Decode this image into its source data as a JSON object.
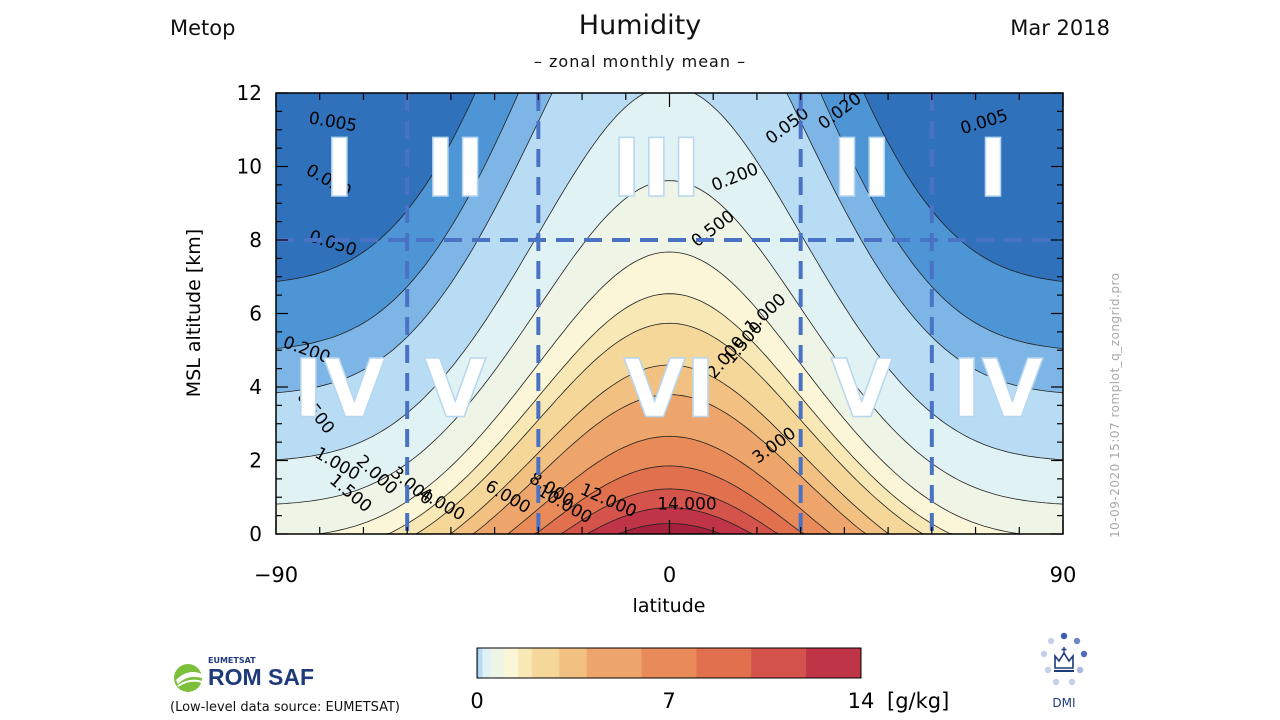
{
  "header": {
    "instrument": "Metop",
    "date": "Mar 2018",
    "title": "Humidity",
    "subtitle": "– zonal monthly mean –",
    "side_stamp": "10-09-2020 15:07 romplot_q_zongrid.pro"
  },
  "chart_data": {
    "type": "contour",
    "variable": "specific humidity",
    "xlabel": "latitude",
    "ylabel": "MSL altitude [km]",
    "xlim": [
      -90,
      90
    ],
    "ylim": [
      0,
      12
    ],
    "x_ticks": [
      "−90",
      "0",
      "90"
    ],
    "y_ticks": [
      "0",
      "2",
      "4",
      "6",
      "8",
      "10",
      "12"
    ],
    "contour_levels": [
      0.005,
      0.02,
      0.05,
      0.2,
      0.5,
      1.0,
      1.5,
      2.0,
      3.0,
      4.0,
      6.0,
      8.0,
      10.0,
      12.0,
      14.0
    ],
    "band_colors": [
      "#2f72bb",
      "#4d95d5",
      "#7db6e6",
      "#b8dcf4",
      "#e1f2f5",
      "#eef5e6",
      "#fbf6d7",
      "#f8e8b6",
      "#f5d799",
      "#f2c080",
      "#eea56b",
      "#e98a59",
      "#e1704f",
      "#d4534a",
      "#c03447",
      "#a8213c"
    ],
    "contour_labels": [
      {
        "text": "0.005",
        "lat": -77,
        "alt": 11.2,
        "rot": -10
      },
      {
        "text": "0.020",
        "lat": -78,
        "alt": 9.6,
        "rot": -30
      },
      {
        "text": "0.050",
        "lat": -77,
        "alt": 7.9,
        "rot": -18
      },
      {
        "text": "0.200",
        "lat": -83,
        "alt": 5.0,
        "rot": -20
      },
      {
        "text": "0.500",
        "lat": -81,
        "alt": 3.3,
        "rot": -52
      },
      {
        "text": "1.000",
        "lat": -76,
        "alt": 1.9,
        "rot": -30
      },
      {
        "text": "1.500",
        "lat": -73,
        "alt": 1.1,
        "rot": -40
      },
      {
        "text": "2.000",
        "lat": -67,
        "alt": 1.6,
        "rot": -43
      },
      {
        "text": "3.000",
        "lat": -59,
        "alt": 1.3,
        "rot": -40
      },
      {
        "text": "4.000",
        "lat": -52,
        "alt": 0.8,
        "rot": -30
      },
      {
        "text": "6.000",
        "lat": -37,
        "alt": 1.0,
        "rot": -30
      },
      {
        "text": "8.000",
        "lat": -27,
        "alt": 1.2,
        "rot": -32
      },
      {
        "text": "10.000",
        "lat": -24,
        "alt": 0.8,
        "rot": -30
      },
      {
        "text": "12.000",
        "lat": -14,
        "alt": 0.9,
        "rot": -24
      },
      {
        "text": "14.000",
        "lat": 4,
        "alt": 0.8,
        "rot": 0
      },
      {
        "text": "0.005",
        "lat": 72,
        "alt": 11.2,
        "rot": 17
      },
      {
        "text": "0.020",
        "lat": 39,
        "alt": 11.5,
        "rot": 37
      },
      {
        "text": "0.050",
        "lat": 27,
        "alt": 11.1,
        "rot": 37
      },
      {
        "text": "0.200",
        "lat": 15,
        "alt": 9.7,
        "rot": 22
      },
      {
        "text": "0.500",
        "lat": 10,
        "alt": 8.3,
        "rot": 37
      },
      {
        "text": "1.000",
        "lat": 22,
        "alt": 6.0,
        "rot": 43
      },
      {
        "text": "1.500",
        "lat": 17,
        "alt": 5.2,
        "rot": 50
      },
      {
        "text": "2.000",
        "lat": 13,
        "alt": 4.8,
        "rot": 50
      },
      {
        "text": "3.000",
        "lat": 24,
        "alt": 2.4,
        "rot": 36
      }
    ],
    "regions": [
      {
        "label": "I",
        "lat": -75.5,
        "alt": 9.8
      },
      {
        "label": "II",
        "lat": -49,
        "alt": 9.8
      },
      {
        "label": "III",
        "lat": -3,
        "alt": 9.8
      },
      {
        "label": "II",
        "lat": 44,
        "alt": 9.8
      },
      {
        "label": "I",
        "lat": 74,
        "alt": 9.8
      },
      {
        "label": "IV",
        "lat": -75.5,
        "alt": 3.8
      },
      {
        "label": "V",
        "lat": -49,
        "alt": 3.8
      },
      {
        "label": "VI",
        "lat": 0,
        "alt": 3.8
      },
      {
        "label": "V",
        "lat": 44,
        "alt": 3.8
      },
      {
        "label": "IV",
        "lat": 75,
        "alt": 3.8
      }
    ],
    "region_dividers": {
      "latitudes": [
        -60,
        -30,
        30,
        60
      ],
      "altitude": 8
    }
  },
  "colorbar": {
    "ticks": [
      {
        "label": "0",
        "value": 0
      },
      {
        "label": "7",
        "value": 7
      },
      {
        "label": "14",
        "value": 14
      }
    ],
    "max": 14,
    "unit": "[g/kg]"
  },
  "footer": {
    "org_small": "EUMETSAT",
    "org_big": "ROM SAF",
    "source": "(Low-level data source: EUMETSAT)",
    "institute": "DMI"
  }
}
